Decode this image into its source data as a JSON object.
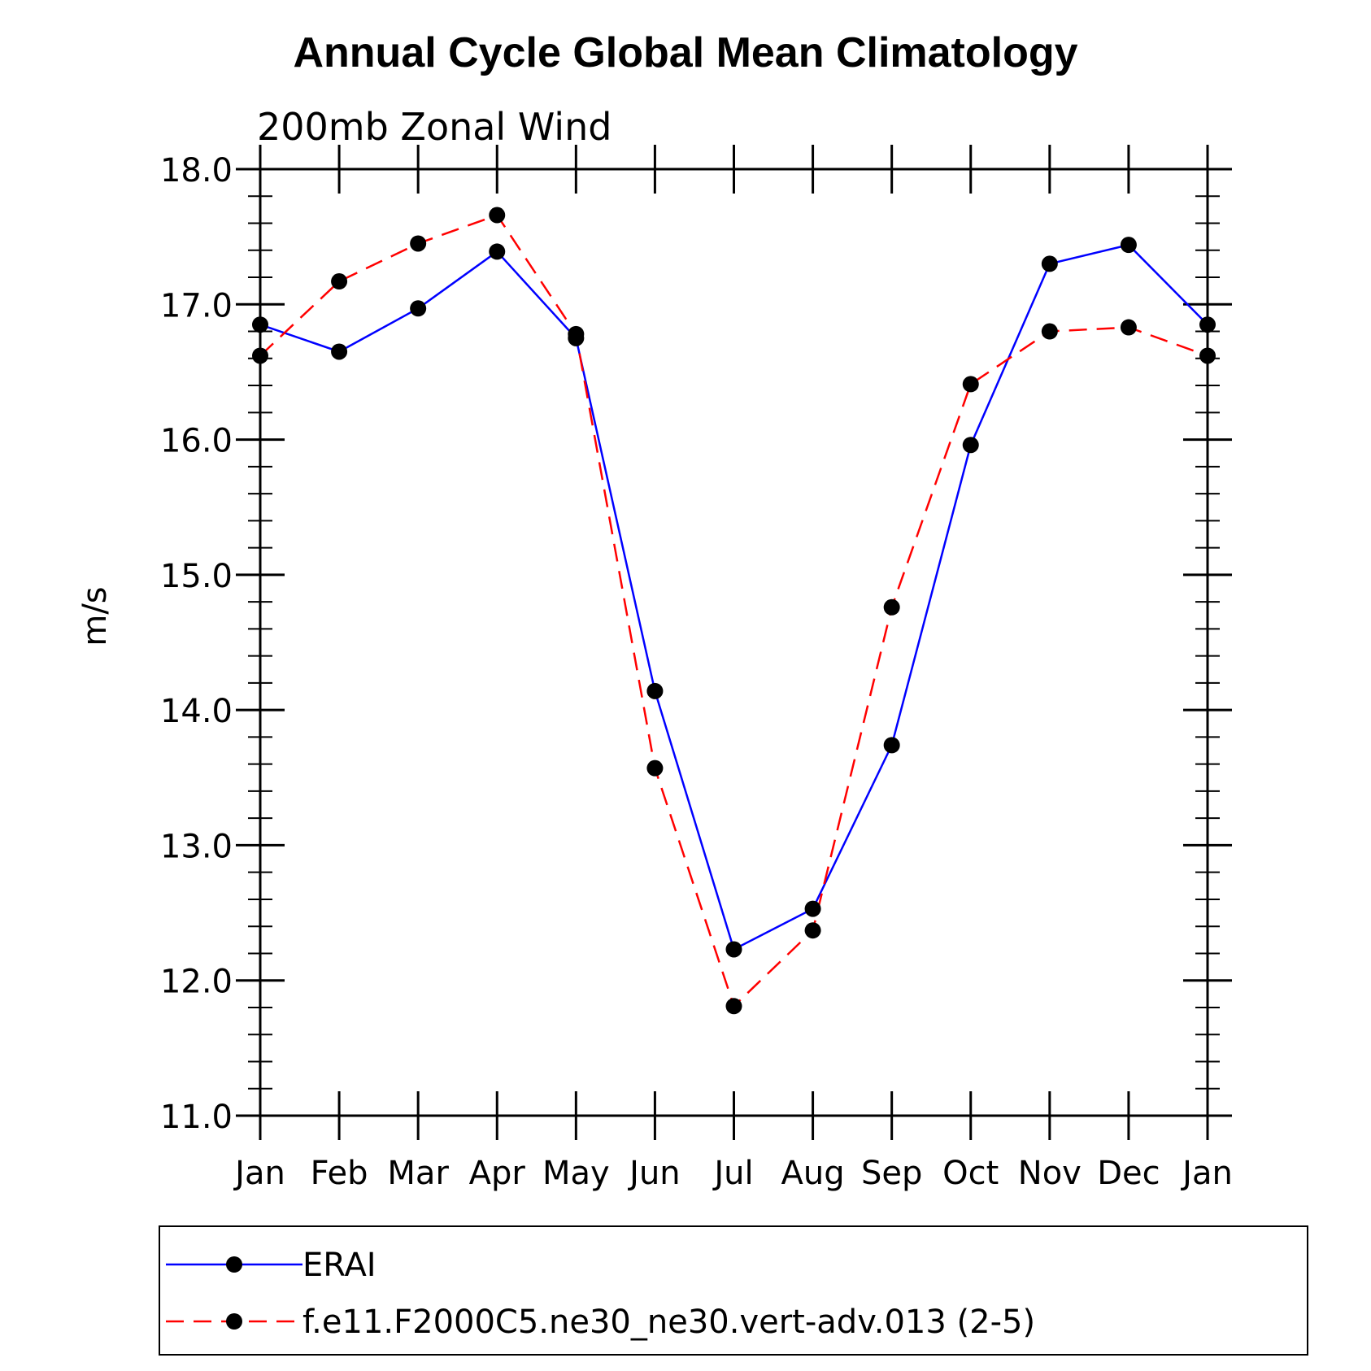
{
  "chart_data": {
    "type": "line",
    "title": "Annual Cycle Global Mean Climatology",
    "subtitle": "200mb Zonal Wind",
    "xlabel": "",
    "ylabel": "m/s",
    "categories": [
      "Jan",
      "Feb",
      "Mar",
      "Apr",
      "May",
      "Jun",
      "Jul",
      "Aug",
      "Sep",
      "Oct",
      "Nov",
      "Dec",
      "Jan"
    ],
    "ylim": [
      11.0,
      18.0
    ],
    "yticks": [
      "11.0",
      "12.0",
      "13.0",
      "14.0",
      "15.0",
      "16.0",
      "17.0",
      "18.0"
    ],
    "grid": false,
    "legend_position": "bottom",
    "series": [
      {
        "name": "ERAI",
        "color": "#0000ff",
        "style": "solid",
        "marker": "filled-circle",
        "values": [
          16.85,
          16.65,
          16.97,
          17.39,
          16.75,
          14.14,
          12.23,
          12.53,
          13.74,
          15.96,
          17.3,
          17.44,
          16.85
        ]
      },
      {
        "name": "f.e11.F2000C5.ne30_ne30.vert-adv.013 (2-5)",
        "color": "#ff0000",
        "style": "dashed",
        "marker": "filled-circle",
        "values": [
          16.62,
          17.17,
          17.45,
          17.66,
          16.78,
          13.57,
          11.81,
          12.37,
          14.76,
          16.41,
          16.8,
          16.83,
          16.62
        ]
      }
    ]
  }
}
